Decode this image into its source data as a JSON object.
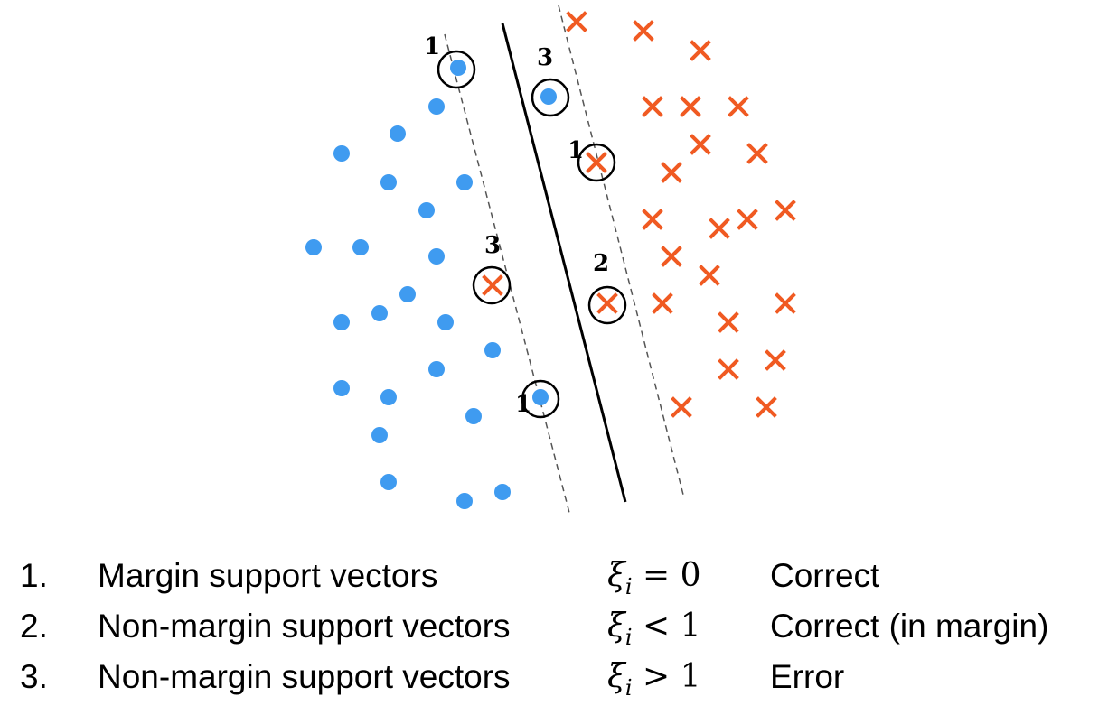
{
  "diagram": {
    "classes": [
      {
        "class_id": "positive",
        "marker": "dot",
        "color": "#3F9BF0"
      },
      {
        "class_id": "negative",
        "marker": "cross",
        "color": "#F05A22"
      }
    ],
    "support_vector_labels": [
      "1",
      "1",
      "1",
      "2",
      "3",
      "3"
    ]
  },
  "legend": {
    "items": [
      {
        "number": "1.",
        "description": "Margin support vectors",
        "xi": "ξ",
        "sub": "i",
        "relation": "= 0",
        "result": "Correct"
      },
      {
        "number": "2.",
        "description": "Non-margin support vectors",
        "xi": "ξ",
        "sub": "i",
        "relation": "< 1",
        "result": "Correct (in margin)"
      },
      {
        "number": "3.",
        "description": "Non-margin support vectors",
        "xi": "ξ",
        "sub": "i",
        "relation": "> 1",
        "result": "Error"
      }
    ]
  }
}
